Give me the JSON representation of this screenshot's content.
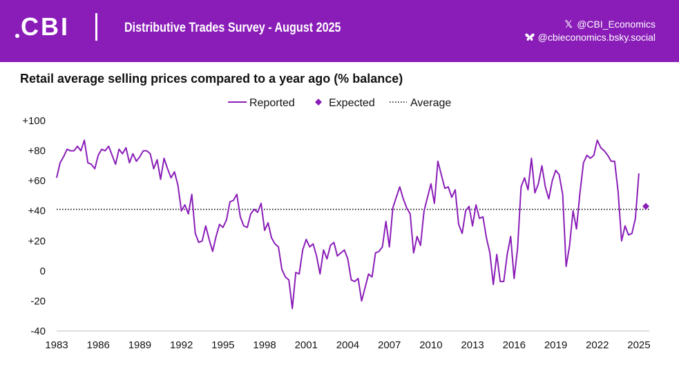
{
  "header": {
    "logo_text": "CBI",
    "survey_title": "Distributive Trades Survey - August 2025",
    "social_x": "@CBI_Economics",
    "social_bluesky": "@cbieconomics.bsky.social",
    "x_icon": "x-logo-icon",
    "bluesky_icon": "butterfly-icon"
  },
  "colors": {
    "banner": "#8a1db8",
    "series": "#8a1db8",
    "average": "#111111"
  },
  "chart_data": {
    "type": "line",
    "title": "Retail average selling prices compared to a year ago (% balance)",
    "xlabel": "",
    "ylabel": "",
    "xlim": [
      1983,
      2025.75
    ],
    "ylim": [
      -40,
      100
    ],
    "x_ticks": [
      "1983",
      "1986",
      "1989",
      "1992",
      "1995",
      "1998",
      "2001",
      "2004",
      "2007",
      "2010",
      "2013",
      "2016",
      "2019",
      "2022",
      "2025"
    ],
    "y_ticks": [
      "+100",
      "+80",
      "+60",
      "+40",
      "+20",
      "0",
      "-20",
      "-40"
    ],
    "y_tick_values": [
      100,
      80,
      60,
      40,
      20,
      0,
      -20,
      -40
    ],
    "grid": false,
    "legend_position": "top-center",
    "legend": [
      "Reported",
      "Expected",
      "Average"
    ],
    "series": [
      {
        "name": "Reported",
        "style": "line",
        "x_start": 1983.0,
        "x_step": 0.25,
        "values": [
          62,
          72,
          76,
          81,
          80,
          80,
          83,
          80,
          87,
          72,
          71,
          68,
          77,
          81,
          80,
          83,
          77,
          71,
          81,
          78,
          82,
          72,
          78,
          73,
          76,
          80,
          80,
          78,
          68,
          74,
          61,
          75,
          68,
          62,
          66,
          57,
          40,
          44,
          38,
          51,
          25,
          19,
          20,
          30,
          21,
          13,
          23,
          31,
          29,
          34,
          46,
          47,
          51,
          36,
          30,
          29,
          38,
          41,
          39,
          45,
          27,
          32,
          22,
          18,
          16,
          1,
          -4,
          -6,
          -25,
          -1,
          -2,
          14,
          21,
          16,
          18,
          10,
          -2,
          14,
          8,
          17,
          19,
          10,
          12,
          14,
          8,
          -6,
          -7,
          -5,
          -20,
          -11,
          -2,
          -4,
          12,
          13,
          16,
          33,
          16,
          42,
          49,
          56,
          48,
          42,
          38,
          12,
          23,
          17,
          40,
          49,
          58,
          45,
          73,
          64,
          55,
          56,
          49,
          54,
          31,
          25,
          40,
          43,
          30,
          44,
          35,
          36,
          22,
          12,
          -9,
          11,
          -7,
          -7,
          11,
          23,
          -5,
          15,
          56,
          62,
          54,
          75,
          52,
          58,
          70,
          56,
          48,
          60,
          67,
          64,
          51,
          3,
          17,
          40,
          28,
          52,
          72,
          77,
          75,
          77,
          87,
          82,
          80,
          77,
          73,
          73,
          53,
          20,
          30,
          24,
          25,
          35,
          65
        ]
      },
      {
        "name": "Expected",
        "style": "marker",
        "x": [
          2025.5
        ],
        "values": [
          43
        ]
      }
    ],
    "reference_lines": [
      {
        "name": "Average",
        "style": "dotted",
        "value": 41
      }
    ]
  }
}
